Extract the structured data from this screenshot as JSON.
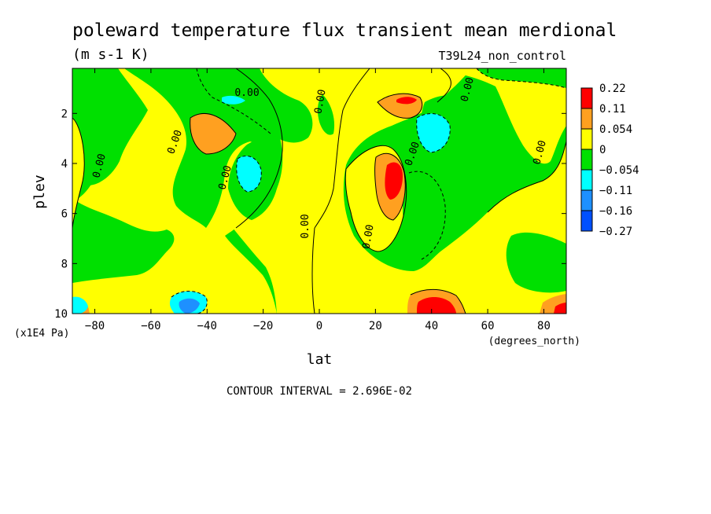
{
  "chart_data": {
    "type": "heatmap",
    "title": "poleward temperature flux transient mean merdional",
    "units": "(m s-1 K)",
    "dataset": "T39L24_non_control",
    "xlabel": "lat",
    "xunits": "(degrees_north)",
    "ylabel": "plev",
    "yunits": "(x1E4 Pa)",
    "xlim": [
      -88,
      88
    ],
    "ylim": [
      10,
      0.2
    ],
    "x_ticks": [
      -80,
      -60,
      -40,
      -20,
      0,
      20,
      40,
      60,
      80
    ],
    "y_ticks": [
      2,
      4,
      6,
      8,
      10
    ],
    "contour_interval_text": "CONTOUR INTERVAL = 2.696E-02",
    "contour_label": "0.00",
    "colorbar": {
      "levels": [
        "0.22",
        "0.11",
        "0.054",
        "0",
        "−0.054",
        "−0.11",
        "−0.16",
        "−0.27"
      ],
      "colors": [
        "#ff0000",
        "#ffa020",
        "#ffff00",
        "#00e000",
        "#00ffff",
        "#1e90ff",
        "#0050ff"
      ]
    },
    "grid": false
  }
}
